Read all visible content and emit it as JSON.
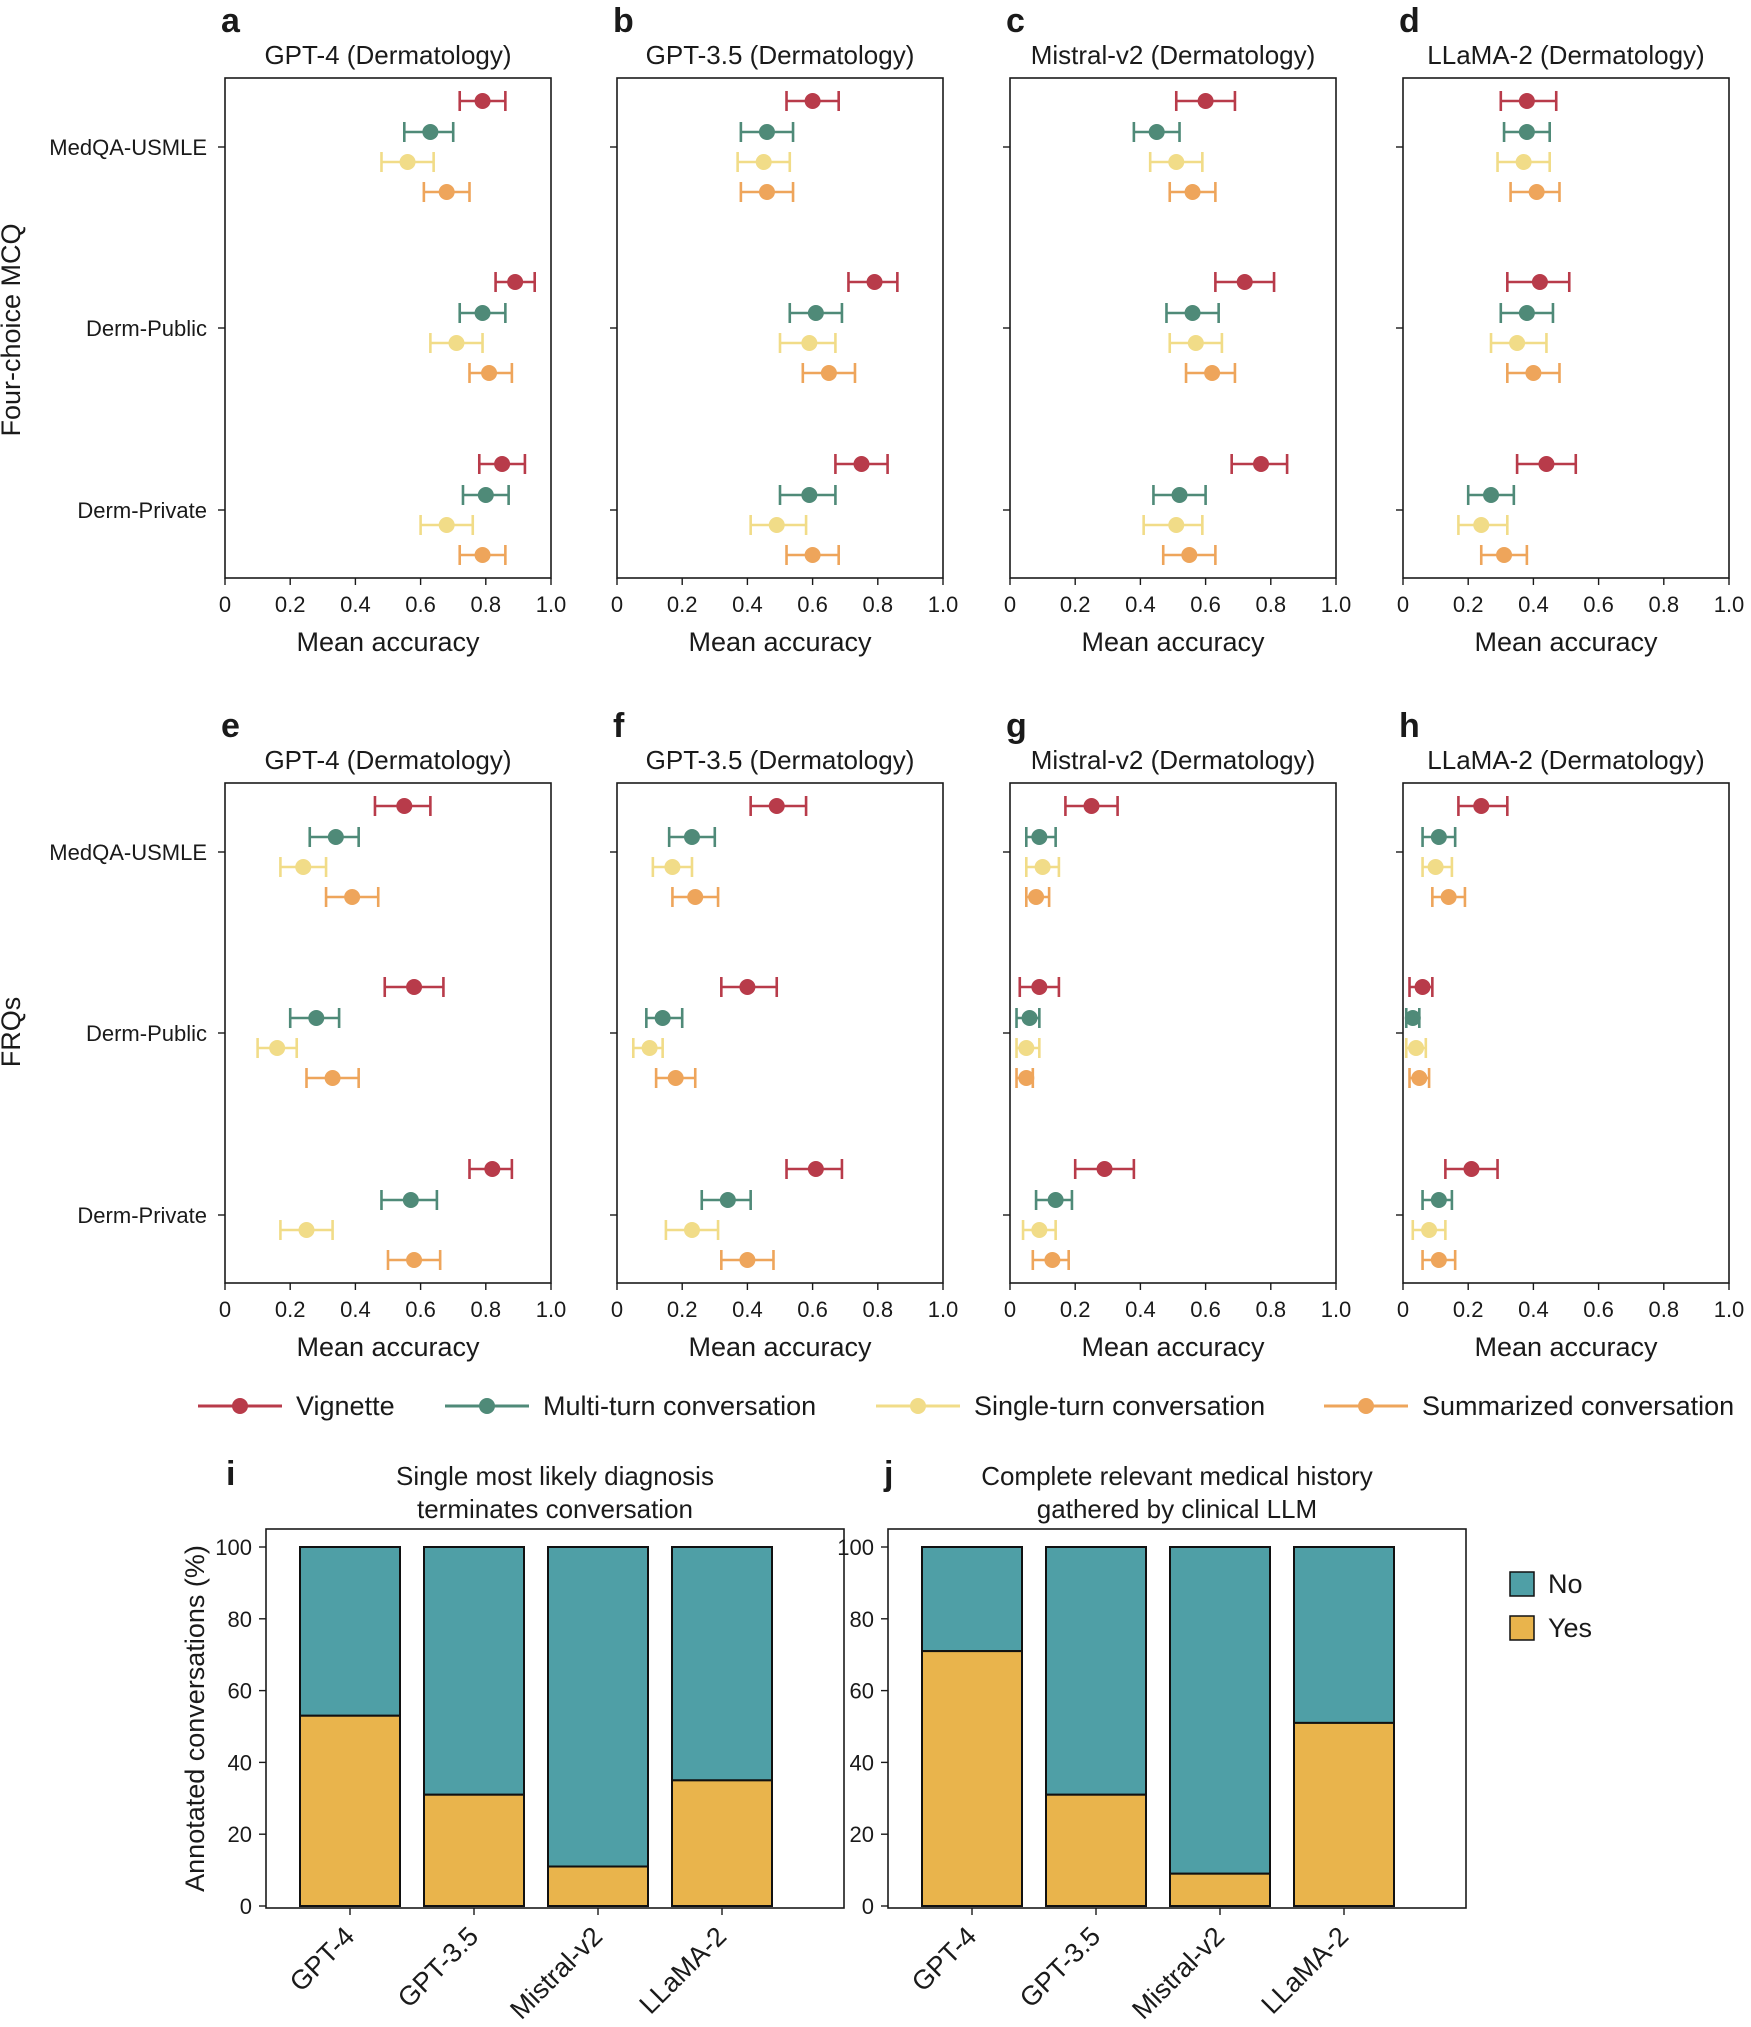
{
  "colors": {
    "vignette": "#b83b4a",
    "multi": "#4f8a78",
    "single": "#f1dc88",
    "summarized": "#eea55b",
    "no": "#4f9fa6",
    "yes": "#e9b44c"
  },
  "row_axis_titles": [
    "Four-choice MCQ",
    "FRQs"
  ],
  "x_axis_title": "Mean accuracy",
  "x_ticks": [
    "0",
    "0.2",
    "0.4",
    "0.6",
    "0.8",
    "1.0"
  ],
  "legend": [
    "Vignette",
    "Multi-turn conversation",
    "Single-turn conversation",
    "Summarized conversation"
  ],
  "bar_legend": [
    "No",
    "Yes"
  ],
  "chart_data": [
    {
      "type": "scatter",
      "panel": "a",
      "title": "GPT-4 (Dermatology)",
      "xlabel": "Mean accuracy",
      "xlim": [
        0,
        1
      ],
      "categories": [
        "MedQA-USMLE",
        "Derm-Public",
        "Derm-Private"
      ],
      "series": [
        {
          "name": "Vignette",
          "values": [
            0.79,
            0.89,
            0.85
          ],
          "lo": [
            0.72,
            0.83,
            0.78
          ],
          "hi": [
            0.86,
            0.95,
            0.92
          ]
        },
        {
          "name": "Multi-turn conversation",
          "values": [
            0.63,
            0.79,
            0.8
          ],
          "lo": [
            0.55,
            0.72,
            0.73
          ],
          "hi": [
            0.7,
            0.86,
            0.87
          ]
        },
        {
          "name": "Single-turn conversation",
          "values": [
            0.56,
            0.71,
            0.68
          ],
          "lo": [
            0.48,
            0.63,
            0.6
          ],
          "hi": [
            0.64,
            0.79,
            0.76
          ]
        },
        {
          "name": "Summarized conversation",
          "values": [
            0.68,
            0.81,
            0.79
          ],
          "lo": [
            0.61,
            0.75,
            0.72
          ],
          "hi": [
            0.75,
            0.88,
            0.86
          ]
        }
      ]
    },
    {
      "type": "scatter",
      "panel": "b",
      "title": "GPT-3.5 (Dermatology)",
      "xlabel": "Mean accuracy",
      "xlim": [
        0,
        1
      ],
      "categories": [
        "MedQA-USMLE",
        "Derm-Public",
        "Derm-Private"
      ],
      "series": [
        {
          "name": "Vignette",
          "values": [
            0.6,
            0.79,
            0.75
          ],
          "lo": [
            0.52,
            0.71,
            0.67
          ],
          "hi": [
            0.68,
            0.86,
            0.83
          ]
        },
        {
          "name": "Multi-turn conversation",
          "values": [
            0.46,
            0.61,
            0.59
          ],
          "lo": [
            0.38,
            0.53,
            0.5
          ],
          "hi": [
            0.54,
            0.69,
            0.67
          ]
        },
        {
          "name": "Single-turn conversation",
          "values": [
            0.45,
            0.59,
            0.49
          ],
          "lo": [
            0.37,
            0.5,
            0.41
          ],
          "hi": [
            0.53,
            0.67,
            0.58
          ]
        },
        {
          "name": "Summarized conversation",
          "values": [
            0.46,
            0.65,
            0.6
          ],
          "lo": [
            0.38,
            0.57,
            0.52
          ],
          "hi": [
            0.54,
            0.73,
            0.68
          ]
        }
      ]
    },
    {
      "type": "scatter",
      "panel": "c",
      "title": "Mistral-v2 (Dermatology)",
      "xlabel": "Mean accuracy",
      "xlim": [
        0,
        1
      ],
      "categories": [
        "MedQA-USMLE",
        "Derm-Public",
        "Derm-Private"
      ],
      "series": [
        {
          "name": "Vignette",
          "values": [
            0.6,
            0.72,
            0.77
          ],
          "lo": [
            0.51,
            0.63,
            0.68
          ],
          "hi": [
            0.69,
            0.81,
            0.85
          ]
        },
        {
          "name": "Multi-turn conversation",
          "values": [
            0.45,
            0.56,
            0.52
          ],
          "lo": [
            0.38,
            0.48,
            0.44
          ],
          "hi": [
            0.52,
            0.64,
            0.6
          ]
        },
        {
          "name": "Single-turn conversation",
          "values": [
            0.51,
            0.57,
            0.51
          ],
          "lo": [
            0.43,
            0.49,
            0.41
          ],
          "hi": [
            0.59,
            0.65,
            0.59
          ]
        },
        {
          "name": "Summarized conversation",
          "values": [
            0.56,
            0.62,
            0.55
          ],
          "lo": [
            0.49,
            0.54,
            0.47
          ],
          "hi": [
            0.63,
            0.69,
            0.63
          ]
        }
      ]
    },
    {
      "type": "scatter",
      "panel": "d",
      "title": "LLaMA-2 (Dermatology)",
      "xlabel": "Mean accuracy",
      "xlim": [
        0,
        1
      ],
      "categories": [
        "MedQA-USMLE",
        "Derm-Public",
        "Derm-Private"
      ],
      "series": [
        {
          "name": "Vignette",
          "values": [
            0.38,
            0.42,
            0.44
          ],
          "lo": [
            0.3,
            0.32,
            0.35
          ],
          "hi": [
            0.47,
            0.51,
            0.53
          ]
        },
        {
          "name": "Multi-turn conversation",
          "values": [
            0.38,
            0.38,
            0.27
          ],
          "lo": [
            0.31,
            0.3,
            0.2
          ],
          "hi": [
            0.45,
            0.46,
            0.34
          ]
        },
        {
          "name": "Single-turn conversation",
          "values": [
            0.37,
            0.35,
            0.24
          ],
          "lo": [
            0.29,
            0.27,
            0.17
          ],
          "hi": [
            0.45,
            0.44,
            0.32
          ]
        },
        {
          "name": "Summarized conversation",
          "values": [
            0.41,
            0.4,
            0.31
          ],
          "lo": [
            0.33,
            0.32,
            0.24
          ],
          "hi": [
            0.48,
            0.48,
            0.38
          ]
        }
      ]
    },
    {
      "type": "scatter",
      "panel": "e",
      "title": "GPT-4 (Dermatology)",
      "xlabel": "Mean accuracy",
      "xlim": [
        0,
        1
      ],
      "categories": [
        "MedQA-USMLE",
        "Derm-Public",
        "Derm-Private"
      ],
      "series": [
        {
          "name": "Vignette",
          "values": [
            0.55,
            0.58,
            0.82
          ],
          "lo": [
            0.46,
            0.49,
            0.75
          ],
          "hi": [
            0.63,
            0.67,
            0.88
          ]
        },
        {
          "name": "Multi-turn conversation",
          "values": [
            0.34,
            0.28,
            0.57
          ],
          "lo": [
            0.26,
            0.2,
            0.48
          ],
          "hi": [
            0.41,
            0.35,
            0.65
          ]
        },
        {
          "name": "Single-turn conversation",
          "values": [
            0.24,
            0.16,
            0.25
          ],
          "lo": [
            0.17,
            0.1,
            0.17
          ],
          "hi": [
            0.31,
            0.22,
            0.33
          ]
        },
        {
          "name": "Summarized conversation",
          "values": [
            0.39,
            0.33,
            0.58
          ],
          "lo": [
            0.31,
            0.25,
            0.5
          ],
          "hi": [
            0.47,
            0.41,
            0.66
          ]
        }
      ]
    },
    {
      "type": "scatter",
      "panel": "f",
      "title": "GPT-3.5 (Dermatology)",
      "xlabel": "Mean accuracy",
      "xlim": [
        0,
        1
      ],
      "categories": [
        "MedQA-USMLE",
        "Derm-Public",
        "Derm-Private"
      ],
      "series": [
        {
          "name": "Vignette",
          "values": [
            0.49,
            0.4,
            0.61
          ],
          "lo": [
            0.41,
            0.32,
            0.52
          ],
          "hi": [
            0.58,
            0.49,
            0.69
          ]
        },
        {
          "name": "Multi-turn conversation",
          "values": [
            0.23,
            0.14,
            0.34
          ],
          "lo": [
            0.16,
            0.09,
            0.26
          ],
          "hi": [
            0.3,
            0.2,
            0.41
          ]
        },
        {
          "name": "Single-turn conversation",
          "values": [
            0.17,
            0.1,
            0.23
          ],
          "lo": [
            0.11,
            0.05,
            0.15
          ],
          "hi": [
            0.23,
            0.14,
            0.31
          ]
        },
        {
          "name": "Summarized conversation",
          "values": [
            0.24,
            0.18,
            0.4
          ],
          "lo": [
            0.17,
            0.12,
            0.32
          ],
          "hi": [
            0.31,
            0.24,
            0.48
          ]
        }
      ]
    },
    {
      "type": "scatter",
      "panel": "g",
      "title": "Mistral-v2 (Dermatology)",
      "xlabel": "Mean accuracy",
      "xlim": [
        0,
        1
      ],
      "categories": [
        "MedQA-USMLE",
        "Derm-Public",
        "Derm-Private"
      ],
      "series": [
        {
          "name": "Vignette",
          "values": [
            0.25,
            0.09,
            0.29
          ],
          "lo": [
            0.17,
            0.03,
            0.2
          ],
          "hi": [
            0.33,
            0.15,
            0.38
          ]
        },
        {
          "name": "Multi-turn conversation",
          "values": [
            0.09,
            0.06,
            0.14
          ],
          "lo": [
            0.05,
            0.02,
            0.08
          ],
          "hi": [
            0.14,
            0.09,
            0.19
          ]
        },
        {
          "name": "Single-turn conversation",
          "values": [
            0.1,
            0.05,
            0.09
          ],
          "lo": [
            0.05,
            0.02,
            0.04
          ],
          "hi": [
            0.15,
            0.09,
            0.14
          ]
        },
        {
          "name": "Summarized conversation",
          "values": [
            0.08,
            0.05,
            0.13
          ],
          "lo": [
            0.05,
            0.02,
            0.07
          ],
          "hi": [
            0.12,
            0.07,
            0.18
          ]
        }
      ]
    },
    {
      "type": "scatter",
      "panel": "h",
      "title": "LLaMA-2 (Dermatology)",
      "xlabel": "Mean accuracy",
      "xlim": [
        0,
        1
      ],
      "categories": [
        "MedQA-USMLE",
        "Derm-Public",
        "Derm-Private"
      ],
      "series": [
        {
          "name": "Vignette",
          "values": [
            0.24,
            0.06,
            0.21
          ],
          "lo": [
            0.17,
            0.02,
            0.13
          ],
          "hi": [
            0.32,
            0.09,
            0.29
          ]
        },
        {
          "name": "Multi-turn conversation",
          "values": [
            0.11,
            0.03,
            0.11
          ],
          "lo": [
            0.06,
            0.01,
            0.06
          ],
          "hi": [
            0.16,
            0.05,
            0.15
          ]
        },
        {
          "name": "Single-turn conversation",
          "values": [
            0.1,
            0.04,
            0.08
          ],
          "lo": [
            0.06,
            0.01,
            0.03
          ],
          "hi": [
            0.15,
            0.07,
            0.13
          ]
        },
        {
          "name": "Summarized conversation",
          "values": [
            0.14,
            0.05,
            0.11
          ],
          "lo": [
            0.09,
            0.02,
            0.06
          ],
          "hi": [
            0.19,
            0.08,
            0.16
          ]
        }
      ]
    },
    {
      "type": "bar",
      "panel": "i",
      "title": "Single most likely diagnosis terminates conversation",
      "title_lines": [
        "Single most likely diagnosis",
        "terminates conversation"
      ],
      "ylabel": "Annotated conversations (%)",
      "ylim": [
        0,
        100
      ],
      "yticks": [
        "0",
        "20",
        "40",
        "60",
        "80",
        "100"
      ],
      "categories": [
        "GPT-4",
        "GPT-3.5",
        "Mistral-v2",
        "LLaMA-2"
      ],
      "series": [
        {
          "name": "Yes",
          "values": [
            53,
            31,
            11,
            35
          ]
        },
        {
          "name": "No",
          "values": [
            47,
            69,
            89,
            65
          ]
        }
      ]
    },
    {
      "type": "bar",
      "panel": "j",
      "title": "Complete relevant medical history gathered by clinical LLM",
      "title_lines": [
        "Complete relevant medical history",
        "gathered by clinical LLM"
      ],
      "ylabel": "",
      "ylim": [
        0,
        100
      ],
      "yticks": [
        "0",
        "20",
        "40",
        "60",
        "80",
        "100"
      ],
      "categories": [
        "GPT-4",
        "GPT-3.5",
        "Mistral-v2",
        "LLaMA-2"
      ],
      "series": [
        {
          "name": "Yes",
          "values": [
            71,
            31,
            9,
            51
          ]
        },
        {
          "name": "No",
          "values": [
            29,
            69,
            91,
            49
          ]
        }
      ]
    }
  ]
}
